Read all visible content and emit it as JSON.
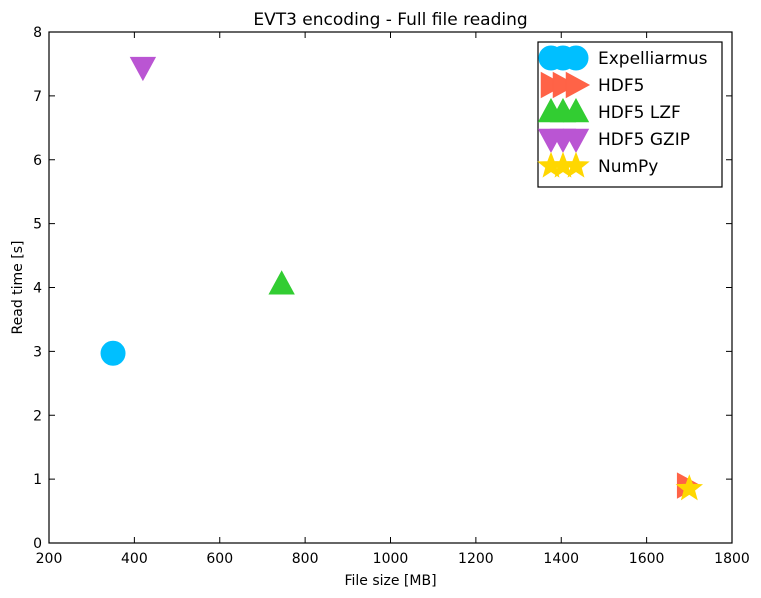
{
  "chart_data": {
    "type": "scatter",
    "title": "EVT3 encoding - Full file reading",
    "xlabel": "File size [MB]",
    "ylabel": "Read time [s]",
    "xlim": [
      200,
      1800
    ],
    "ylim": [
      0,
      8
    ],
    "xticks": [
      200,
      400,
      600,
      800,
      1000,
      1200,
      1400,
      1600,
      1800
    ],
    "yticks": [
      0,
      1,
      2,
      3,
      4,
      5,
      6,
      7,
      8
    ],
    "grid": false,
    "legend_position": "top-right",
    "series": [
      {
        "name": "Expelliarmus",
        "marker": "circle",
        "color": "#00bfff",
        "points": [
          {
            "x": 350,
            "y": 2.97
          }
        ]
      },
      {
        "name": "HDF5",
        "marker": "triangle-right",
        "color": "#ff6347",
        "points": [
          {
            "x": 1695,
            "y": 0.9
          }
        ]
      },
      {
        "name": "HDF5 LZF",
        "marker": "triangle-up",
        "color": "#32cd32",
        "points": [
          {
            "x": 745,
            "y": 4.05
          }
        ]
      },
      {
        "name": "HDF5 GZIP",
        "marker": "triangle-down",
        "color": "#ba55d3",
        "points": [
          {
            "x": 420,
            "y": 7.45
          }
        ]
      },
      {
        "name": "NumPy",
        "marker": "star",
        "color": "#ffd700",
        "points": [
          {
            "x": 1700,
            "y": 0.85
          }
        ]
      }
    ]
  }
}
